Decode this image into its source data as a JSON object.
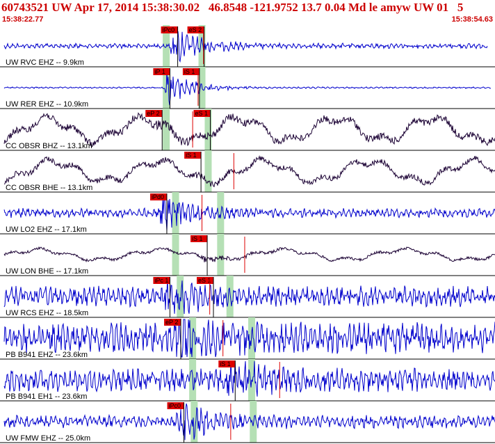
{
  "header": {
    "title": "60743521 UW Apr 17, 2014 15:38:30.02   46.8548 -121.9752 13.7 0.04 Md le amyw UW 01   5",
    "start_time": "15:38:22.77",
    "end_time": "15:38:54.63"
  },
  "colors": {
    "header_text": "#cc0000",
    "trace_vertical": "#0000cc",
    "trace_horizontal": "#1a0033",
    "pick_box": "#dd0000",
    "pick_window": "#b5e0b5",
    "marker": "#dd0000"
  },
  "chart_data": {
    "type": "line",
    "title": "60743521 UW Apr 17, 2014 15:38:30.02   46.8548 -121.9752 13.7 0.04 Md le amyw UW 01   5",
    "x_range": [
      "15:38:22.77",
      "15:38:54.63"
    ],
    "x_range_seconds": [
      0,
      31.86
    ],
    "grid": false,
    "series": [
      {
        "name": "UW RVC EHZ -- 9.9km",
        "component": "Z",
        "picks": [
          {
            "label": "iPc0",
            "t": 10.9
          },
          {
            "label": "eS 2",
            "t": 12.6
          }
        ],
        "p_window": 10.7,
        "s_window": 13.0,
        "end_t": 31.4,
        "noise": 0.1,
        "burst": 1.0,
        "hf": 1.0
      },
      {
        "name": "UW RER EHZ -- 10.9km",
        "component": "Z",
        "picks": [
          {
            "label": "iP 1",
            "t": 10.4
          },
          {
            "label": "iS 1",
            "t": 12.3
          }
        ],
        "p_window": 10.7,
        "s_window": 13.0,
        "end_t": 31.6,
        "noise": 0.03,
        "burst": 0.9,
        "hf": 1.0
      },
      {
        "name": "CC OBSR BHZ -- 13.1km",
        "component": "H",
        "picks": [
          {
            "label": "eP 2",
            "t": 9.9
          },
          {
            "label": "eS 1",
            "t": 13.0
          }
        ],
        "p_window": 10.7,
        "s_window": 13.4,
        "end_t": 31.9,
        "noise": 0.55,
        "burst": 0.35,
        "hf": 0.25
      },
      {
        "name": "CC OBSR BHE -- 13.1km",
        "component": "H",
        "picks": [
          {
            "label": "iS 1",
            "t": 12.4
          }
        ],
        "p_window": null,
        "s_window": 13.4,
        "end_t": 31.9,
        "noise": 0.5,
        "burst": 0.3,
        "hf": 0.2
      },
      {
        "name": "UW LO2 EHZ -- 17.1km",
        "component": "Z",
        "picks": [
          {
            "label": "iPd0",
            "t": 10.2
          }
        ],
        "p_window": 11.3,
        "s_window": 14.2,
        "end_t": 32.2,
        "noise": 0.18,
        "burst": 0.9,
        "hf": 1.0
      },
      {
        "name": "UW LON BHE -- 17.1km",
        "component": "H",
        "picks": [
          {
            "label": "iS 1",
            "t": 12.8
          }
        ],
        "p_window": 11.3,
        "s_window": 14.2,
        "end_t": 32.3,
        "noise": 0.25,
        "burst": 0.6,
        "hf": 0.2
      },
      {
        "name": "UW RCS EHZ -- 18.5km",
        "component": "Z",
        "picks": [
          {
            "label": "iPc 1",
            "t": 10.4
          },
          {
            "label": "eS 1",
            "t": 13.2
          }
        ],
        "p_window": 11.6,
        "s_window": 14.8,
        "end_t": 32.5,
        "noise": 0.4,
        "burst": 0.95,
        "hf": 1.0
      },
      {
        "name": "PB B941 EHZ -- 23.6km",
        "component": "Z",
        "picks": [
          {
            "label": "eP 2",
            "t": 11.1
          }
        ],
        "p_window": 12.4,
        "s_window": 16.2,
        "end_t": 33.1,
        "noise": 0.6,
        "burst": 0.95,
        "hf": 1.0
      },
      {
        "name": "PB B941 EH1 -- 23.6km",
        "component": "Z",
        "picks": [
          {
            "label": "iS 1",
            "t": 14.6
          }
        ],
        "p_window": 12.4,
        "s_window": 16.2,
        "end_t": 33.1,
        "noise": 0.45,
        "burst": 0.95,
        "hf": 1.0
      },
      {
        "name": "UW FMW EHZ -- 25.0km",
        "component": "Z",
        "picks": [
          {
            "label": "iPc0",
            "t": 11.3
          }
        ],
        "p_window": 12.5,
        "s_window": 16.3,
        "end_t": 32.2,
        "noise": 0.25,
        "burst": 0.95,
        "hf": 1.0
      }
    ]
  }
}
